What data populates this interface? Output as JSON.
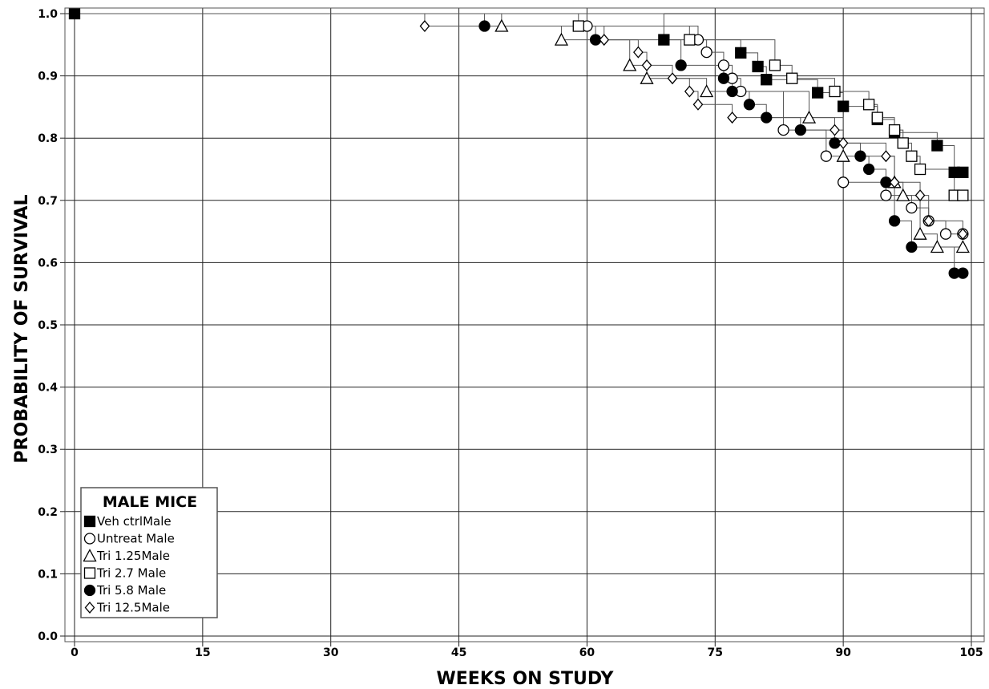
{
  "chart_data": {
    "type": "line",
    "step": true,
    "title": "",
    "xlabel": "WEEKS ON STUDY",
    "ylabel": "PROBABILITY OF SURVIVAL",
    "xlim": [
      0,
      105
    ],
    "ylim": [
      0.0,
      1.0
    ],
    "xticks": [
      "0",
      "15",
      "30",
      "45",
      "60",
      "75",
      "90",
      "105"
    ],
    "yticks": [
      "0.0",
      "0.1",
      "0.2",
      "0.3",
      "0.4",
      "0.5",
      "0.6",
      "0.7",
      "0.8",
      "0.9",
      "1.0"
    ],
    "grid": true,
    "legend": {
      "title": "MALE MICE",
      "placement": "bottom-left"
    },
    "series": [
      {
        "name": "Veh ctrlMale",
        "marker": "filled-square",
        "points": [
          [
            0,
            1.0
          ],
          [
            69,
            0.958
          ],
          [
            78,
            0.937
          ],
          [
            80,
            0.915
          ],
          [
            81,
            0.894
          ],
          [
            87,
            0.873
          ],
          [
            90,
            0.851
          ],
          [
            94,
            0.83
          ],
          [
            96,
            0.809
          ],
          [
            101,
            0.788
          ],
          [
            103,
            0.745
          ],
          [
            104,
            0.745
          ]
        ]
      },
      {
        "name": "Untreat Male",
        "marker": "open-circle",
        "points": [
          [
            60,
            0.98
          ],
          [
            73,
            0.958
          ],
          [
            74,
            0.938
          ],
          [
            76,
            0.917
          ],
          [
            77,
            0.896
          ],
          [
            78,
            0.875
          ],
          [
            83,
            0.813
          ],
          [
            88,
            0.771
          ],
          [
            90,
            0.729
          ],
          [
            95,
            0.708
          ],
          [
            98,
            0.688
          ],
          [
            100,
            0.667
          ],
          [
            102,
            0.646
          ],
          [
            104,
            0.646
          ]
        ]
      },
      {
        "name": "Tri 1.25Male",
        "marker": "open-triangle",
        "points": [
          [
            50,
            0.98
          ],
          [
            57,
            0.958
          ],
          [
            65,
            0.917
          ],
          [
            67,
            0.896
          ],
          [
            74,
            0.875
          ],
          [
            86,
            0.833
          ],
          [
            90,
            0.771
          ],
          [
            96,
            0.729
          ],
          [
            97,
            0.708
          ],
          [
            99,
            0.646
          ],
          [
            101,
            0.625
          ],
          [
            104,
            0.625
          ]
        ]
      },
      {
        "name": "Tri 2.7 Male",
        "marker": "open-square",
        "points": [
          [
            59,
            0.98
          ],
          [
            72,
            0.958
          ],
          [
            82,
            0.917
          ],
          [
            84,
            0.896
          ],
          [
            89,
            0.875
          ],
          [
            93,
            0.854
          ],
          [
            94,
            0.833
          ],
          [
            96,
            0.813
          ],
          [
            97,
            0.792
          ],
          [
            98,
            0.771
          ],
          [
            99,
            0.75
          ],
          [
            103,
            0.708
          ],
          [
            104,
            0.708
          ]
        ]
      },
      {
        "name": "Tri 5.8 Male",
        "marker": "filled-circle",
        "points": [
          [
            48,
            0.98
          ],
          [
            61,
            0.958
          ],
          [
            71,
            0.917
          ],
          [
            76,
            0.896
          ],
          [
            77,
            0.875
          ],
          [
            79,
            0.854
          ],
          [
            81,
            0.833
          ],
          [
            85,
            0.813
          ],
          [
            89,
            0.792
          ],
          [
            92,
            0.771
          ],
          [
            93,
            0.75
          ],
          [
            95,
            0.729
          ],
          [
            96,
            0.667
          ],
          [
            98,
            0.625
          ],
          [
            103,
            0.583
          ],
          [
            104,
            0.583
          ]
        ]
      },
      {
        "name": "Tri 12.5Male",
        "marker": "open-diamond",
        "points": [
          [
            41,
            0.98
          ],
          [
            62,
            0.958
          ],
          [
            66,
            0.938
          ],
          [
            67,
            0.917
          ],
          [
            70,
            0.896
          ],
          [
            72,
            0.875
          ],
          [
            73,
            0.854
          ],
          [
            77,
            0.833
          ],
          [
            89,
            0.813
          ],
          [
            90,
            0.792
          ],
          [
            95,
            0.771
          ],
          [
            96,
            0.729
          ],
          [
            99,
            0.708
          ],
          [
            100,
            0.667
          ],
          [
            104,
            0.646
          ]
        ]
      }
    ]
  }
}
